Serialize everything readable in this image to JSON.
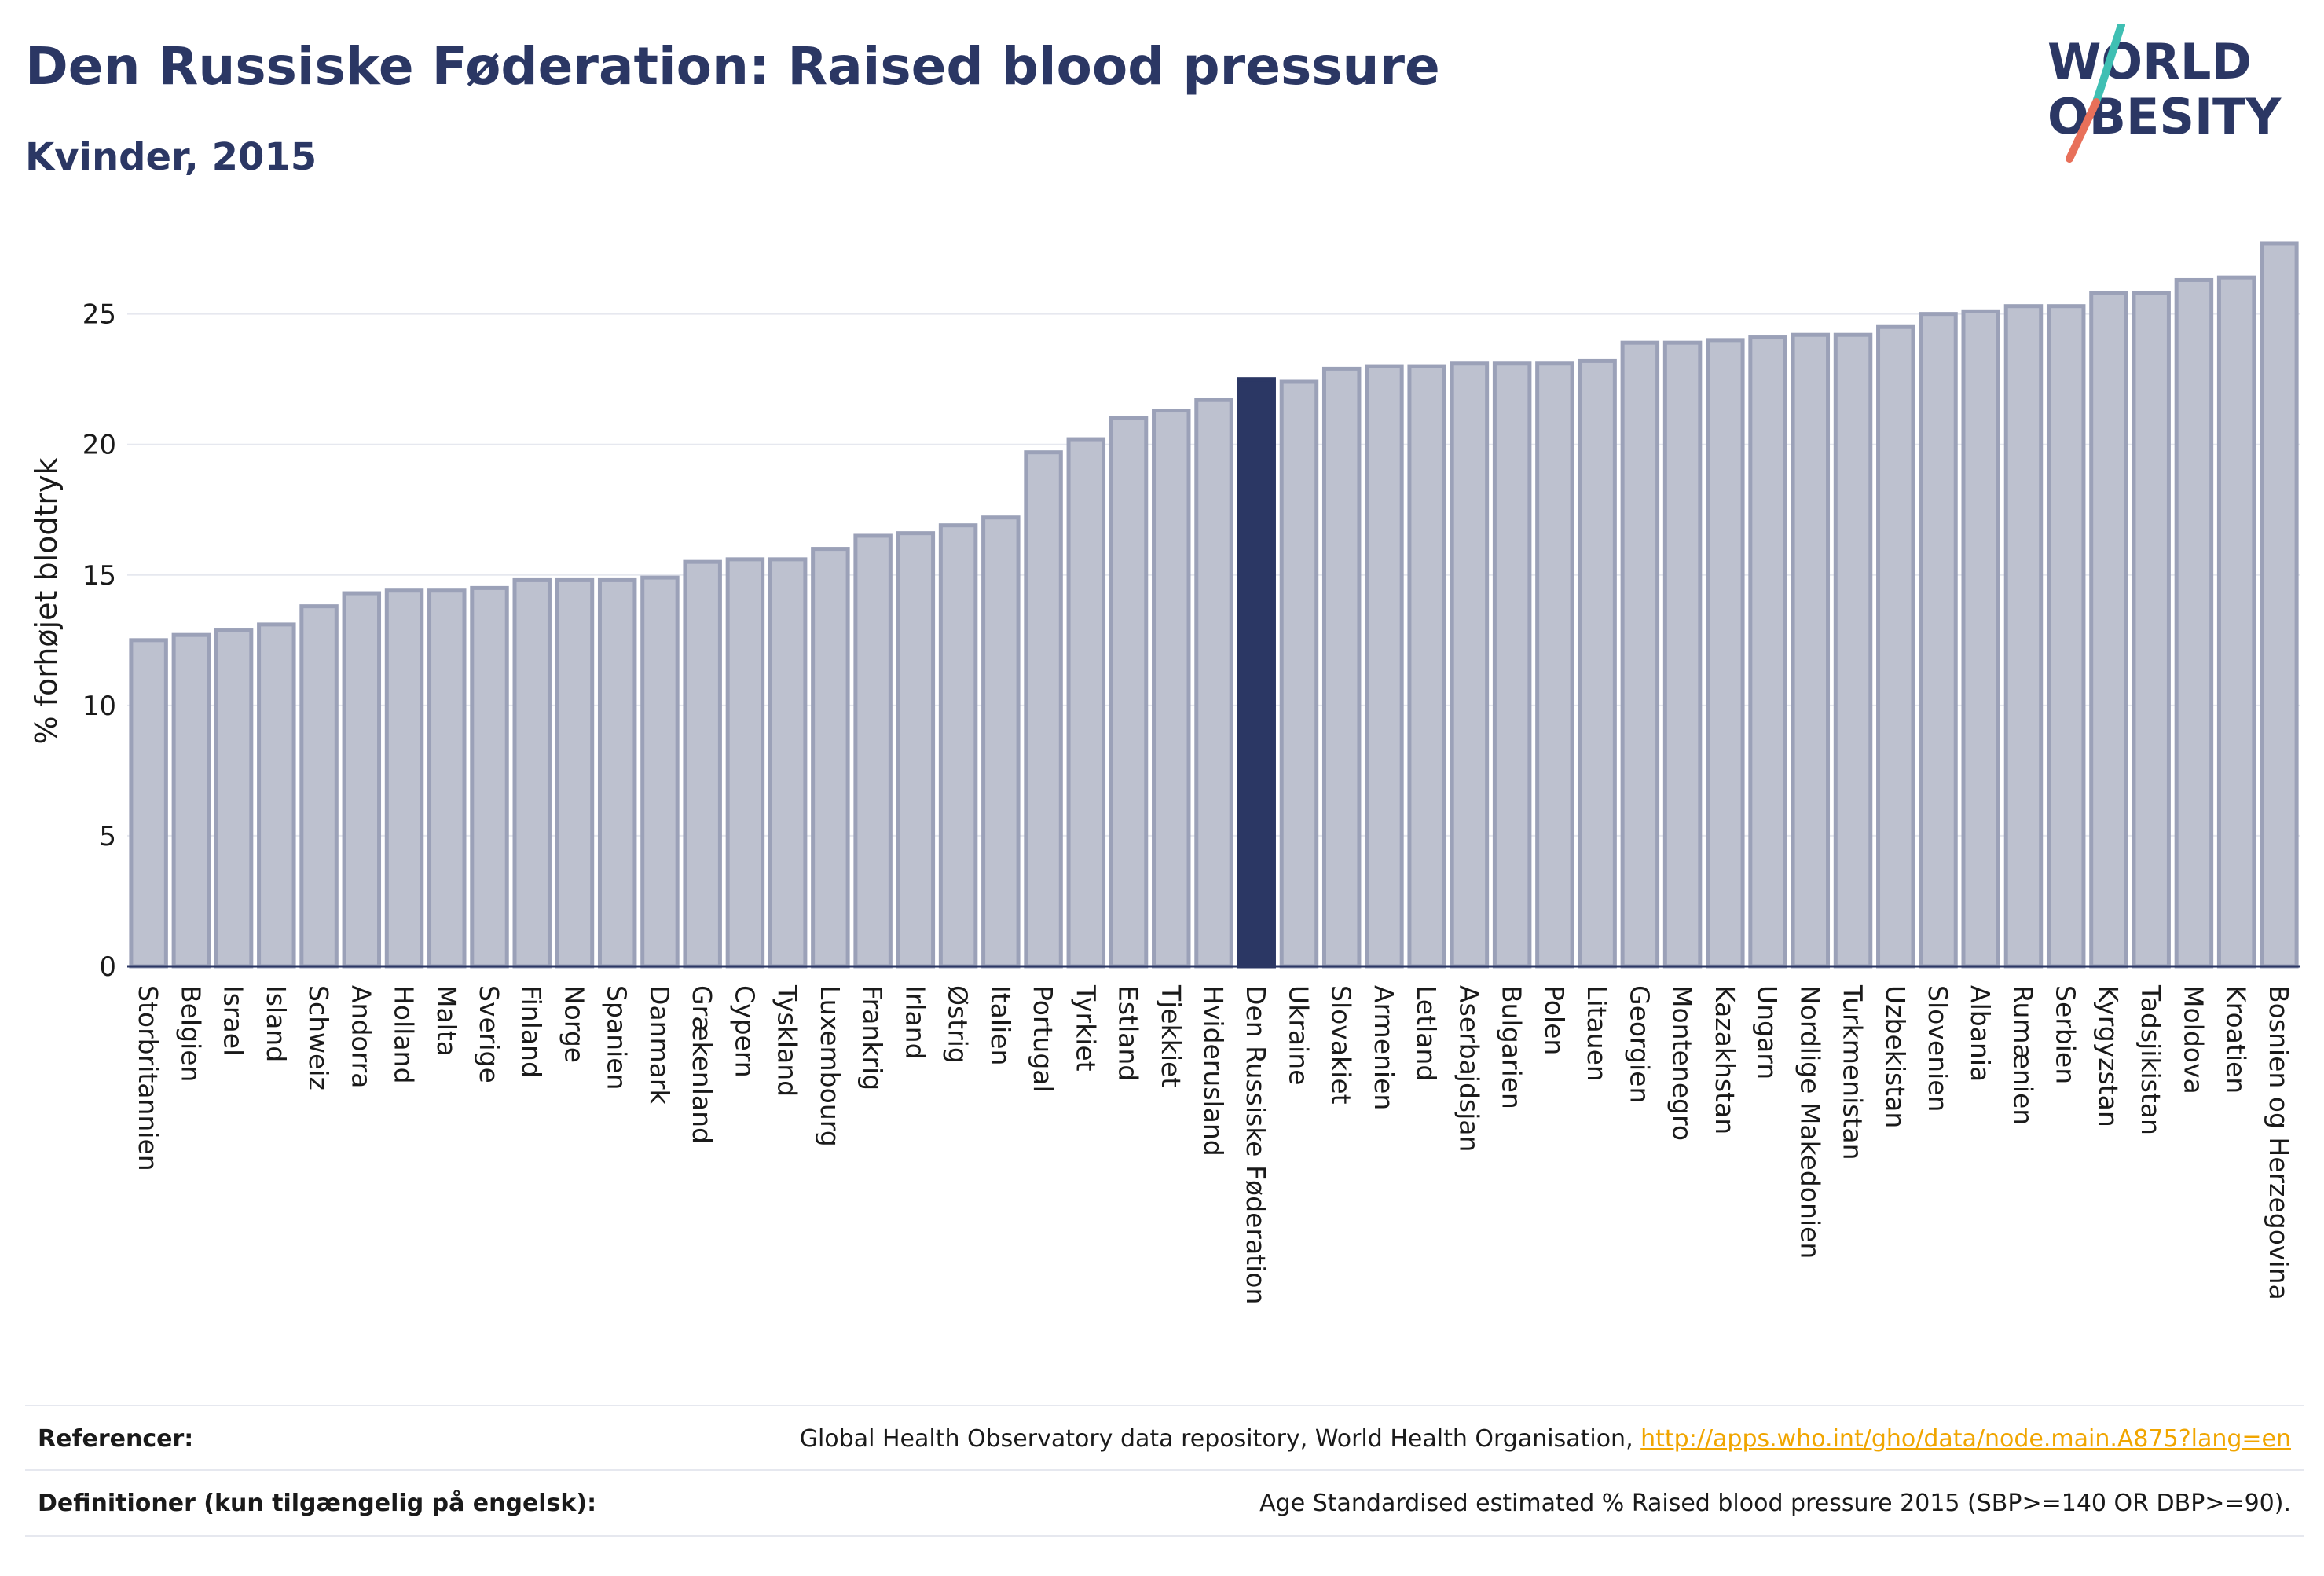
{
  "header": {
    "title": "Den Russiske Føderation: Raised blood pressure",
    "subtitle": "Kvinder, 2015"
  },
  "logo": {
    "line1": "WORLD",
    "line2": "OBESITY",
    "colors": {
      "text": "#2b3764",
      "slash_teal": "#3fbfb3",
      "slash_coral": "#e8705a"
    }
  },
  "chart_data": {
    "type": "bar",
    "title": "Den Russiske Føderation: Raised blood pressure",
    "subtitle": "Kvinder, 2015",
    "xlabel": "",
    "ylabel": "% forhøjet blodtryk",
    "ylim": [
      0,
      28
    ],
    "yticks": [
      0,
      5,
      10,
      15,
      20,
      25
    ],
    "grid": true,
    "highlight": "Den Russiske Føderation",
    "colors": {
      "bar_fill": "#bdc1cf",
      "bar_stroke": "#9ba1b8",
      "highlight_fill": "#2b3764",
      "grid": "#e6e8ef",
      "axis": "#2b3764"
    },
    "categories": [
      "Storbritannien",
      "Belgien",
      "Israel",
      "Island",
      "Schweiz",
      "Andorra",
      "Holland",
      "Malta",
      "Sverige",
      "Finland",
      "Norge",
      "Spanien",
      "Danmark",
      "Grækenland",
      "Cypern",
      "Tyskland",
      "Luxembourg",
      "Frankrig",
      "Irland",
      "Østrig",
      "Italien",
      "Portugal",
      "Tyrkiet",
      "Estland",
      "Tjekkiet",
      "Hviderusland",
      "Den Russiske Føderation",
      "Ukraine",
      "Slovakiet",
      "Armenien",
      "Letland",
      "Aserbajdsjan",
      "Bulgarien",
      "Polen",
      "Litauen",
      "Georgien",
      "Montenegro",
      "Kazakhstan",
      "Ungarn",
      "Nordlige Makedonien",
      "Turkmenistan",
      "Uzbekistan",
      "Slovenien",
      "Albania",
      "Rumænien",
      "Serbien",
      "Kyrgyzstan",
      "Tadsjikistan",
      "Moldova",
      "Kroatien",
      "Bosnien og Herzegovina"
    ],
    "values": [
      12.5,
      12.7,
      12.9,
      13.1,
      13.8,
      14.3,
      14.4,
      14.4,
      14.5,
      14.8,
      14.8,
      14.8,
      14.9,
      15.5,
      15.6,
      15.6,
      16.0,
      16.5,
      16.6,
      16.9,
      17.2,
      19.7,
      20.2,
      21.0,
      21.3,
      21.7,
      22.5,
      22.4,
      22.9,
      23.0,
      23.0,
      23.1,
      23.1,
      23.1,
      23.2,
      23.9,
      23.9,
      24.0,
      24.1,
      24.2,
      24.2,
      24.5,
      25.0,
      25.1,
      25.3,
      25.3,
      25.8,
      25.8,
      26.3,
      26.4,
      27.7
    ]
  },
  "footer": {
    "references_label": "Referencer:",
    "references_text": "Global Health Observatory data repository, World Health Organisation, ",
    "references_link": "http://apps.who.int/gho/data/node.main.A875?lang=en",
    "definitions_label": "Definitioner (kun tilgængelig på engelsk):",
    "definitions_text": "Age Standardised estimated % Raised blood pressure 2015 (SBP>=140 OR DBP>=90)."
  }
}
